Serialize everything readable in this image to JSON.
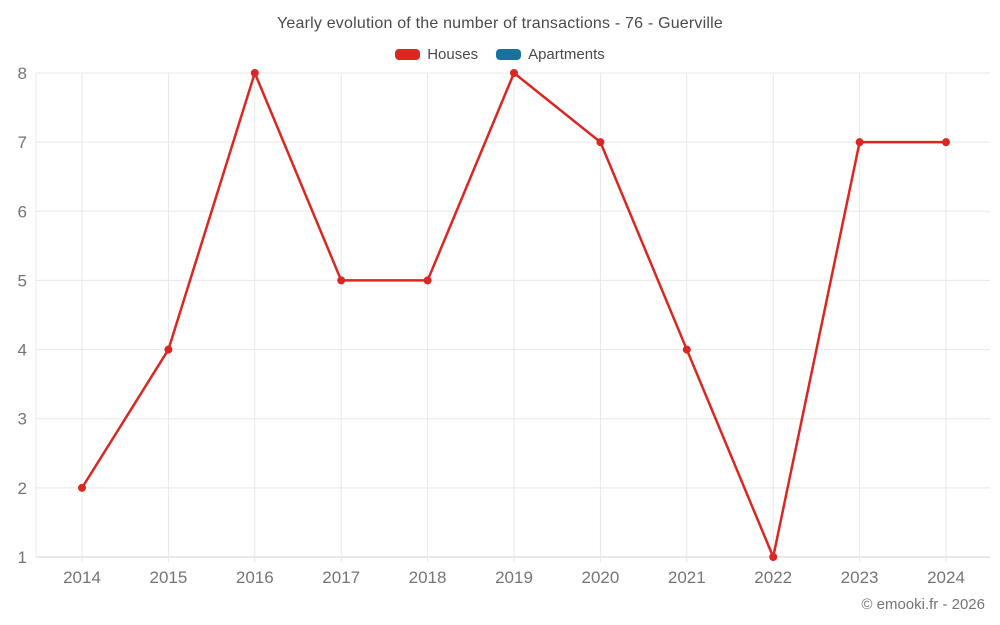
{
  "title": "Yearly evolution of the number of transactions - 76 - Guerville",
  "footer": {
    "copyright": "© emooki.fr - 2026"
  },
  "chart_data": {
    "type": "line",
    "title": "Yearly evolution of the number of transactions - 76 - Guerville",
    "categories": [
      "2014",
      "2015",
      "2016",
      "2017",
      "2018",
      "2019",
      "2020",
      "2021",
      "2022",
      "2023",
      "2024"
    ],
    "series": [
      {
        "name": "Houses",
        "color": "#dc2621",
        "values": [
          2,
          4,
          8,
          5,
          5,
          8,
          7,
          4,
          1,
          7,
          7
        ]
      },
      {
        "name": "Apartments",
        "color": "#17739c",
        "values": []
      }
    ],
    "ylim": [
      1,
      8
    ],
    "yticks": [
      1,
      2,
      3,
      4,
      5,
      6,
      7,
      8
    ],
    "grid": true,
    "grid_color": "#e8e8e8",
    "axis_line_color": "#d2d2d2",
    "tick_label_color": "#757575",
    "legend_position": "top"
  }
}
